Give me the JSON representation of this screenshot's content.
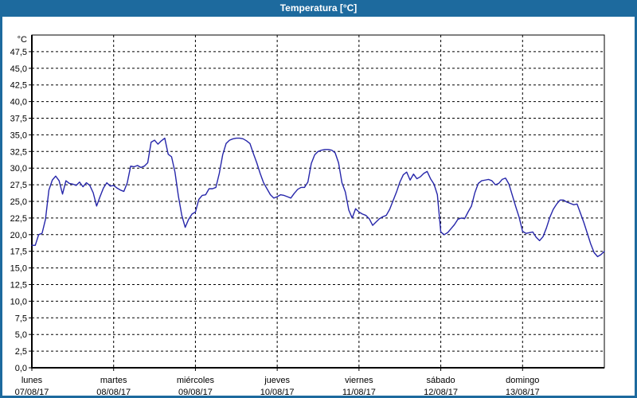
{
  "window": {
    "title": "Temperatura [°C]"
  },
  "colors": {
    "titlebar_bg": "#1d6a9e",
    "window_border": "#1d6a9e",
    "series_line": "#2626aa",
    "grid": "#000000",
    "background": "#ffffff",
    "title_text": "#ffffff"
  },
  "chart_data": {
    "type": "line",
    "title": "Temperatura [°C]",
    "y_unit_label": "°C",
    "ylim": [
      0,
      50
    ],
    "y_tick_step": 2.5,
    "y_tick_labels": [
      "0,0",
      "2,5",
      "5,0",
      "7,5",
      "10,0",
      "12,5",
      "15,0",
      "17,5",
      "20,0",
      "22,5",
      "25,0",
      "27,5",
      "30,0",
      "32,5",
      "35,0",
      "37,5",
      "40,0",
      "42,5",
      "45,0",
      "47,5"
    ],
    "grid": "dashed",
    "legend": "none",
    "x_days": [
      {
        "day": "lunes",
        "date": "07/08/17"
      },
      {
        "day": "martes",
        "date": "08/08/17"
      },
      {
        "day": "miércoles",
        "date": "09/08/17"
      },
      {
        "day": "jueves",
        "date": "10/08/17"
      },
      {
        "day": "viernes",
        "date": "11/08/17"
      },
      {
        "day": "sábado",
        "date": "12/08/17"
      },
      {
        "day": "domingo",
        "date": "13/08/17"
      }
    ],
    "hours_per_day": 24,
    "series": [
      {
        "name": "Temperatura",
        "unit": "°C",
        "sampling": "hourly",
        "values_hourly": [
          18.4,
          18.4,
          20.0,
          20.2,
          22.3,
          26.7,
          28.2,
          28.8,
          28.1,
          26.1,
          28.1,
          27.7,
          27.6,
          27.4,
          27.9,
          27.2,
          27.8,
          27.4,
          26.3,
          24.3,
          25.7,
          27.0,
          27.8,
          27.3,
          27.4,
          27.0,
          26.7,
          26.5,
          27.8,
          30.3,
          30.2,
          30.4,
          30.1,
          30.3,
          30.8,
          33.9,
          34.2,
          33.6,
          34.1,
          34.5,
          32.1,
          31.7,
          29.4,
          25.8,
          22.9,
          21.1,
          22.3,
          23.1,
          23.4,
          25.3,
          25.9,
          26.0,
          26.9,
          26.9,
          27.1,
          29.2,
          32.0,
          33.7,
          34.2,
          34.4,
          34.5,
          34.5,
          34.4,
          34.1,
          33.7,
          32.2,
          30.8,
          29.2,
          27.8,
          26.9,
          26.0,
          25.5,
          25.7,
          26.0,
          25.9,
          25.7,
          25.5,
          26.2,
          26.8,
          27.1,
          27.1,
          27.9,
          30.7,
          32.0,
          32.5,
          32.7,
          32.8,
          32.8,
          32.7,
          32.3,
          30.8,
          27.8,
          26.4,
          23.7,
          22.5,
          23.9,
          23.4,
          23.1,
          22.9,
          22.4,
          21.4,
          21.9,
          22.4,
          22.7,
          22.9,
          23.8,
          25.1,
          26.4,
          27.9,
          29.0,
          29.4,
          28.2,
          29.1,
          28.4,
          28.7,
          29.2,
          29.5,
          28.4,
          27.6,
          26.0,
          20.4,
          20.0,
          20.3,
          20.9,
          21.5,
          22.3,
          22.5,
          22.4,
          23.4,
          24.3,
          26.3,
          27.7,
          28.1,
          28.2,
          28.3,
          28.1,
          27.5,
          27.7,
          28.3,
          28.5,
          27.6,
          25.9,
          24.2,
          22.6,
          20.5,
          20.2,
          20.3,
          20.4,
          19.6,
          19.1,
          19.7,
          21.0,
          22.6,
          23.8,
          24.6,
          25.2,
          25.2,
          24.9,
          24.7,
          24.5,
          24.6,
          23.2,
          21.8,
          20.2,
          18.6,
          17.3,
          16.7,
          17.0,
          17.5
        ]
      }
    ]
  }
}
